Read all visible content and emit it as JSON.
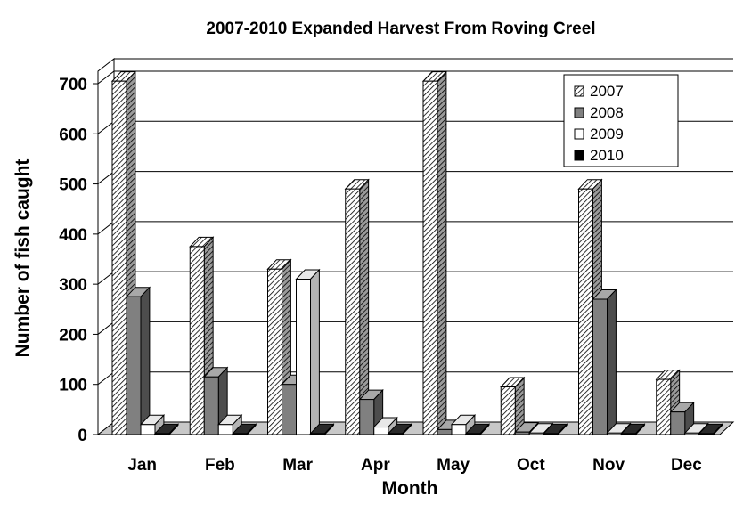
{
  "chart_data": {
    "type": "bar",
    "title": "2007-2010 Expanded Harvest From Roving Creel",
    "xlabel": "Month",
    "ylabel": "Number of fish caught",
    "categories": [
      "Jan",
      "Feb",
      "Mar",
      "Apr",
      "May",
      "Oct",
      "Nov",
      "Dec"
    ],
    "series": [
      {
        "name": "2007",
        "values": [
          705,
          375,
          330,
          490,
          705,
          95,
          490,
          110
        ]
      },
      {
        "name": "2008",
        "values": [
          275,
          115,
          100,
          70,
          10,
          5,
          270,
          45
        ]
      },
      {
        "name": "2009",
        "values": [
          20,
          20,
          310,
          15,
          20,
          3,
          3,
          3
        ]
      },
      {
        "name": "2010",
        "values": [
          2,
          2,
          2,
          2,
          2,
          2,
          2,
          2
        ]
      }
    ],
    "ylim": [
      0,
      700
    ],
    "yticks": [
      0,
      100,
      200,
      300,
      400,
      500,
      600,
      700
    ],
    "grid": true,
    "legend_position": "top-right",
    "style": "3d-clustered-bar"
  }
}
